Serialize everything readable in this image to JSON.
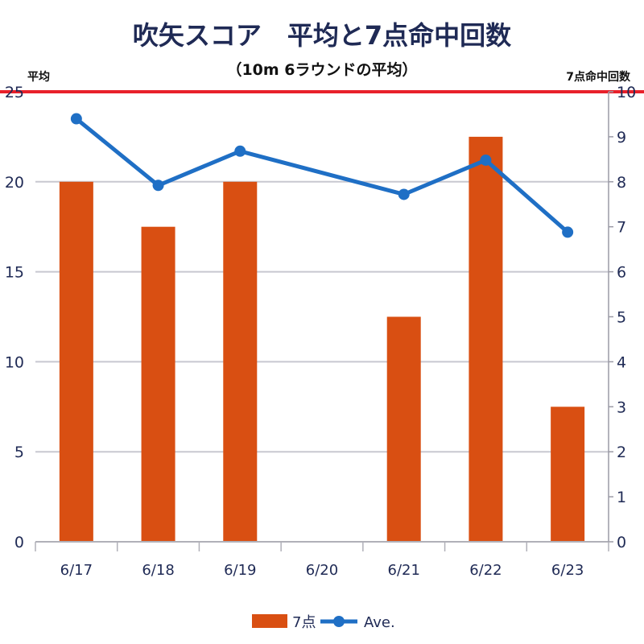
{
  "chart_data": {
    "type": "bar",
    "title": "吹矢スコア　平均と7点命中回数",
    "subtitle": "（10m 6ラウンドの平均）",
    "ylabel_left": "平均",
    "ylabel_right": "7点命中回数",
    "categories": [
      "6/17",
      "6/18",
      "6/19",
      "6/20",
      "6/21",
      "6/22",
      "6/23"
    ],
    "series": [
      {
        "name": "7点",
        "type": "bar",
        "axis": "right",
        "color": "#d94f12",
        "values": [
          8,
          7,
          8,
          0,
          5,
          9,
          3
        ]
      },
      {
        "name": "Ave.",
        "type": "line",
        "axis": "left",
        "color": "#1f6fc5",
        "values": [
          23.5,
          19.8,
          21.7,
          null,
          19.3,
          21.2,
          17.2
        ]
      }
    ],
    "y_left": {
      "min": 0,
      "max": 25,
      "ticks": [
        "0",
        "5",
        "10",
        "15",
        "20",
        "25"
      ]
    },
    "y_right": {
      "min": 0,
      "max": 10,
      "ticks": [
        "0",
        "1",
        "2",
        "3",
        "4",
        "5",
        "6",
        "7",
        "8",
        "9",
        "10"
      ]
    },
    "reference_line": {
      "axis": "left",
      "value": 25,
      "color": "#e8202a"
    },
    "grid": true,
    "legend_position": "bottom",
    "gridline_color": "#c8c8d0"
  }
}
